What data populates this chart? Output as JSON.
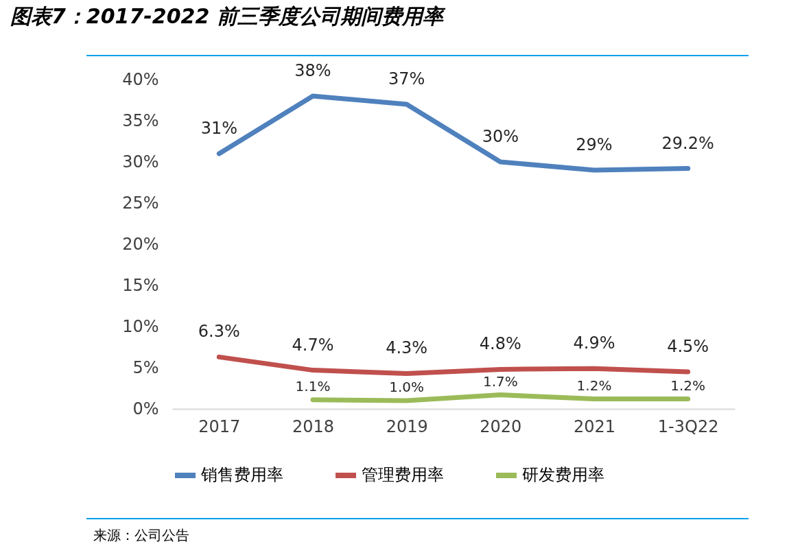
{
  "chart_data": {
    "type": "line",
    "title": "图表7：2017-2022 前三季度公司期间费用率",
    "categories": [
      "2017",
      "2018",
      "2019",
      "2020",
      "2021",
      "1-3Q22"
    ],
    "series": [
      {
        "name": "销售费用率",
        "color": "#4f81bd",
        "values": [
          31,
          38,
          37,
          30,
          29,
          29.2
        ],
        "value_labels": [
          "31%",
          "38%",
          "37%",
          "30%",
          "29%",
          "29.2%"
        ]
      },
      {
        "name": "管理费用率",
        "color": "#c0504d",
        "values": [
          6.3,
          4.7,
          4.3,
          4.8,
          4.9,
          4.5
        ],
        "value_labels": [
          "6.3%",
          "4.7%",
          "4.3%",
          "4.8%",
          "4.9%",
          "4.5%"
        ]
      },
      {
        "name": "研发费用率",
        "color": "#9bbb59",
        "values": [
          null,
          1.1,
          1.0,
          1.7,
          1.2,
          1.2
        ],
        "value_labels": [
          null,
          "1.1%",
          "1.0%",
          "1.7%",
          "1.2%",
          "1.2%"
        ]
      }
    ],
    "ylim": [
      0,
      40
    ],
    "yticks": [
      {
        "value": 0,
        "label": "0%"
      },
      {
        "value": 5,
        "label": "5%"
      },
      {
        "value": 10,
        "label": "10%"
      },
      {
        "value": 15,
        "label": "15%"
      },
      {
        "value": 20,
        "label": "20%"
      },
      {
        "value": 25,
        "label": "25%"
      },
      {
        "value": 30,
        "label": "30%"
      },
      {
        "value": 35,
        "label": "35%"
      },
      {
        "value": 40,
        "label": "40%"
      }
    ],
    "grid": false,
    "legend": "bottom",
    "marker": "none",
    "line_style": "solid",
    "annotations": [
      "来源：公司公告"
    ]
  }
}
